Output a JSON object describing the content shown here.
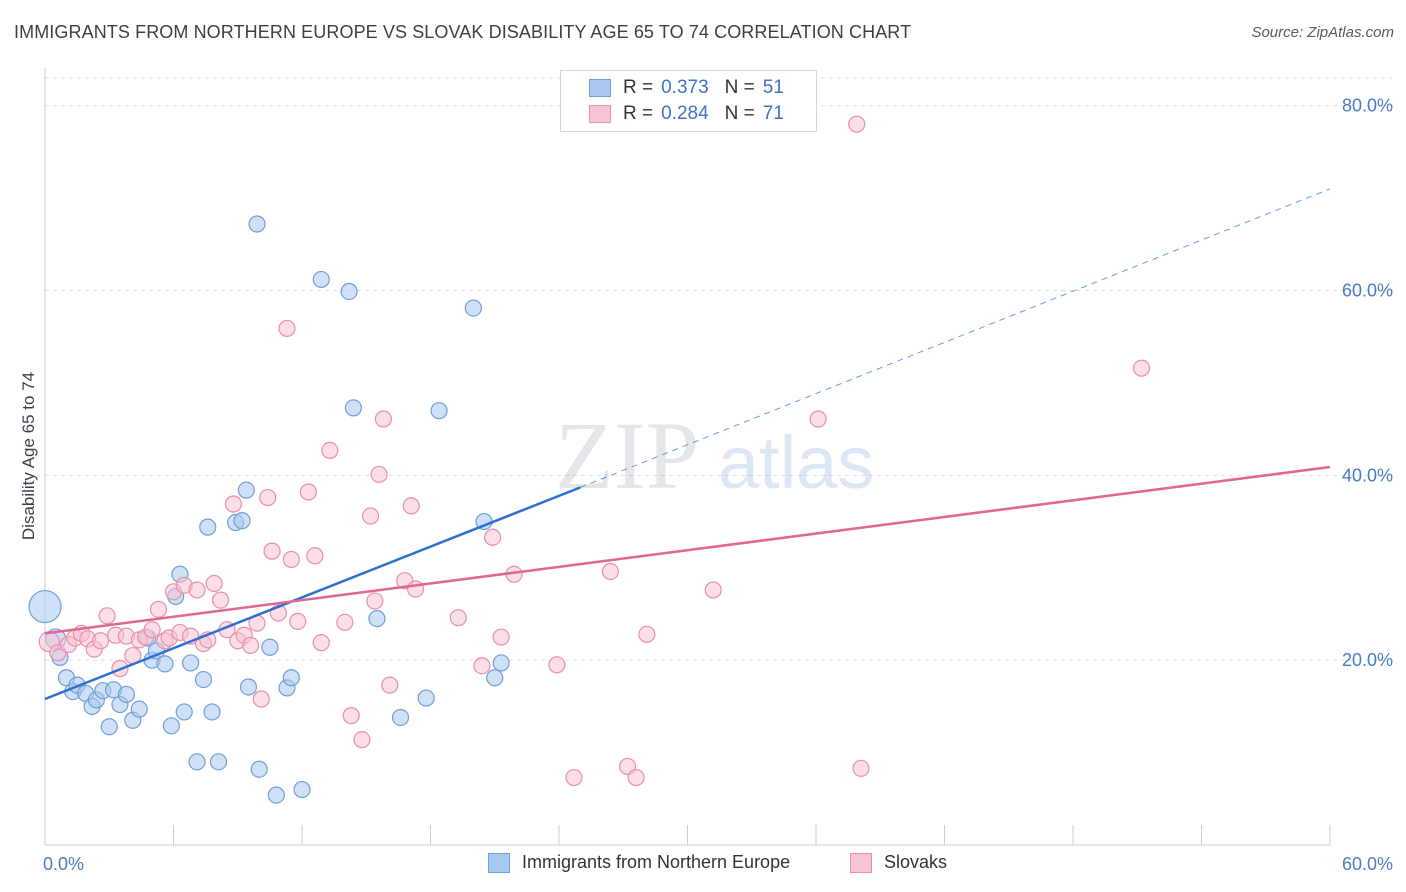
{
  "header": {
    "title": "IMMIGRANTS FROM NORTHERN EUROPE VS SLOVAK DISABILITY AGE 65 TO 74 CORRELATION CHART",
    "source": "Source: ZipAtlas.com"
  },
  "legend": {
    "r_label": "R =",
    "n_label": "N =",
    "rows": [
      {
        "r": "0.373",
        "n": "51",
        "color": "#a9c8f0",
        "border": "#6f9fd8"
      },
      {
        "r": "0.284",
        "n": "71",
        "color": "#f8c3d3",
        "border": "#e98fab"
      }
    ]
  },
  "bottom_legend": {
    "items": [
      {
        "label": "Immigrants from Northern Europe",
        "color": "#a9c8f0",
        "border": "#6f9fd8"
      },
      {
        "label": "Slovaks",
        "color": "#f8c3d3",
        "border": "#e98fab"
      }
    ]
  },
  "watermark": {
    "zip": "ZIP",
    "atlas": "atlas"
  },
  "chart_data": {
    "type": "scatter",
    "ylabel": "Disability Age 65 to 74",
    "xlabel": "",
    "xlim": [
      0,
      60
    ],
    "ylim": [
      0,
      83
    ],
    "x_tick_labels": [
      "0.0%",
      "60.0%"
    ],
    "y_tick_labels": [
      "20.0%",
      "40.0%",
      "60.0%",
      "80.0%"
    ],
    "y_ticks": [
      20,
      40,
      60,
      80
    ],
    "grid": true,
    "legend_position": "top-center",
    "series": [
      {
        "name": "Immigrants from Northern Europe",
        "color": "#6f9fd8",
        "fill": "#a9c8f0",
        "line_color": "#2c6fd1",
        "trend": {
          "x0": 0,
          "y0": 15.8,
          "x1": 25,
          "y1": 38.7,
          "dash_to_x": 60,
          "dash_to_y": 71
        },
        "points": [
          [
            0.0,
            25.8,
            16
          ],
          [
            0.5,
            22.3,
            10
          ],
          [
            0.7,
            20.3,
            8
          ],
          [
            1.0,
            18.1,
            8
          ],
          [
            1.3,
            16.6,
            8
          ],
          [
            1.5,
            17.3,
            8
          ],
          [
            1.9,
            16.4,
            8
          ],
          [
            2.2,
            15.0,
            8
          ],
          [
            2.4,
            15.7,
            8
          ],
          [
            2.7,
            16.7,
            8
          ],
          [
            3.0,
            12.8,
            8
          ],
          [
            3.2,
            16.8,
            8
          ],
          [
            3.5,
            15.2,
            8
          ],
          [
            3.8,
            16.3,
            8
          ],
          [
            4.1,
            13.5,
            8
          ],
          [
            4.4,
            14.7,
            8
          ],
          [
            4.8,
            22.4,
            8
          ],
          [
            5.0,
            20.0,
            8
          ],
          [
            5.2,
            21.0,
            8
          ],
          [
            5.6,
            19.6,
            8
          ],
          [
            5.9,
            12.9,
            8
          ],
          [
            6.1,
            26.9,
            8
          ],
          [
            6.3,
            29.3,
            8
          ],
          [
            6.5,
            14.4,
            8
          ],
          [
            6.8,
            19.7,
            8
          ],
          [
            7.1,
            9.0,
            8
          ],
          [
            7.4,
            17.9,
            8
          ],
          [
            7.6,
            34.4,
            8
          ],
          [
            7.8,
            14.4,
            8
          ],
          [
            8.1,
            9.0,
            8
          ],
          [
            8.9,
            34.9,
            8
          ],
          [
            9.2,
            35.1,
            8
          ],
          [
            9.4,
            38.4,
            8
          ],
          [
            9.5,
            17.1,
            8
          ],
          [
            9.9,
            67.2,
            8
          ],
          [
            10.0,
            8.2,
            8
          ],
          [
            10.5,
            21.4,
            8
          ],
          [
            10.8,
            5.4,
            8
          ],
          [
            11.3,
            17.0,
            8
          ],
          [
            11.5,
            18.1,
            8
          ],
          [
            12.0,
            6.0,
            8
          ],
          [
            12.9,
            61.2,
            8
          ],
          [
            14.2,
            59.9,
            8
          ],
          [
            14.4,
            47.3,
            8
          ],
          [
            15.5,
            24.5,
            8
          ],
          [
            16.6,
            13.8,
            8
          ],
          [
            17.8,
            15.9,
            8
          ],
          [
            18.4,
            47.0,
            8
          ],
          [
            20.0,
            58.1,
            8
          ],
          [
            20.5,
            35.0,
            8
          ],
          [
            21.0,
            18.1,
            8
          ],
          [
            21.3,
            19.7,
            8
          ]
        ]
      },
      {
        "name": "Slovaks",
        "color": "#e98fab",
        "fill": "#f8c3d3",
        "line_color": "#e0678f",
        "trend": {
          "x0": 0,
          "y0": 22.9,
          "x1": 60,
          "y1": 40.9
        },
        "points": [
          [
            0.2,
            22.0,
            10
          ],
          [
            0.6,
            20.8,
            8
          ],
          [
            1.1,
            21.7,
            8
          ],
          [
            1.4,
            22.4,
            8
          ],
          [
            1.7,
            22.9,
            8
          ],
          [
            2.0,
            22.3,
            8
          ],
          [
            2.3,
            21.2,
            8
          ],
          [
            2.6,
            22.1,
            8
          ],
          [
            2.9,
            24.8,
            8
          ],
          [
            3.3,
            22.7,
            8
          ],
          [
            3.5,
            19.1,
            8
          ],
          [
            3.8,
            22.6,
            8
          ],
          [
            4.1,
            20.5,
            8
          ],
          [
            4.4,
            22.2,
            8
          ],
          [
            4.7,
            22.5,
            8
          ],
          [
            5.0,
            23.3,
            8
          ],
          [
            5.3,
            25.5,
            8
          ],
          [
            5.6,
            22.1,
            8
          ],
          [
            5.8,
            22.4,
            8
          ],
          [
            6.0,
            27.4,
            8
          ],
          [
            6.3,
            23.0,
            8
          ],
          [
            6.5,
            28.1,
            8
          ],
          [
            6.8,
            22.6,
            8
          ],
          [
            7.1,
            27.6,
            8
          ],
          [
            7.4,
            21.8,
            8
          ],
          [
            7.6,
            22.2,
            8
          ],
          [
            7.9,
            28.3,
            8
          ],
          [
            8.2,
            26.5,
            8
          ],
          [
            8.5,
            23.3,
            8
          ],
          [
            8.8,
            36.9,
            8
          ],
          [
            9.0,
            22.1,
            8
          ],
          [
            9.3,
            22.7,
            8
          ],
          [
            9.6,
            21.6,
            8
          ],
          [
            9.9,
            24.0,
            8
          ],
          [
            10.1,
            15.8,
            8
          ],
          [
            10.4,
            37.6,
            8
          ],
          [
            10.6,
            31.8,
            8
          ],
          [
            10.9,
            25.1,
            8
          ],
          [
            11.3,
            55.9,
            8
          ],
          [
            11.5,
            30.9,
            8
          ],
          [
            11.8,
            24.2,
            8
          ],
          [
            12.3,
            38.2,
            8
          ],
          [
            12.6,
            31.3,
            8
          ],
          [
            12.9,
            21.9,
            8
          ],
          [
            13.3,
            42.7,
            8
          ],
          [
            14.0,
            24.1,
            8
          ],
          [
            14.3,
            14.0,
            8
          ],
          [
            14.8,
            11.4,
            8
          ],
          [
            15.2,
            35.6,
            8
          ],
          [
            15.4,
            26.4,
            8
          ],
          [
            15.6,
            40.1,
            8
          ],
          [
            15.8,
            46.1,
            8
          ],
          [
            16.1,
            17.3,
            8
          ],
          [
            16.8,
            28.6,
            8
          ],
          [
            17.1,
            36.7,
            8
          ],
          [
            17.3,
            27.7,
            8
          ],
          [
            19.3,
            24.6,
            8
          ],
          [
            20.4,
            19.4,
            8
          ],
          [
            20.9,
            33.3,
            8
          ],
          [
            21.3,
            22.5,
            8
          ],
          [
            21.9,
            29.3,
            8
          ],
          [
            23.9,
            19.5,
            8
          ],
          [
            24.7,
            7.3,
            8
          ],
          [
            26.4,
            29.6,
            8
          ],
          [
            27.2,
            8.5,
            8
          ],
          [
            27.6,
            7.3,
            8
          ],
          [
            28.1,
            22.8,
            8
          ],
          [
            31.2,
            27.6,
            8
          ],
          [
            36.1,
            46.1,
            8
          ],
          [
            37.9,
            78.0,
            8
          ],
          [
            38.1,
            8.3,
            8
          ],
          [
            51.2,
            51.6,
            8
          ]
        ]
      }
    ]
  }
}
